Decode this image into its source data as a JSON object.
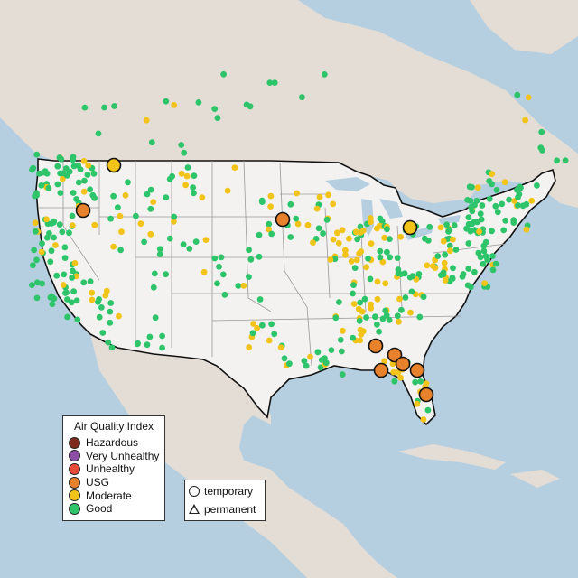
{
  "colors": {
    "ocean": "#b6cfe0",
    "land_us": "#f3f2f0",
    "land_other": "#e4ddd6",
    "border": "#111111",
    "state_line": "#9a9a9a"
  },
  "legend": {
    "title": "Air Quality Index",
    "categories": [
      {
        "label": "Hazardous",
        "color": "#7e2a1d"
      },
      {
        "label": "Very Unhealthy",
        "color": "#8d4fa6"
      },
      {
        "label": "Unhealthy",
        "color": "#e84a3a"
      },
      {
        "label": "USG",
        "color": "#e8812b"
      },
      {
        "label": "Moderate",
        "color": "#f2c318"
      },
      {
        "label": "Good",
        "color": "#2dc46a"
      }
    ],
    "monitor_types": [
      {
        "label": "temporary",
        "symbol": "circle"
      },
      {
        "label": "permanent",
        "symbol": "triangle"
      }
    ]
  }
}
